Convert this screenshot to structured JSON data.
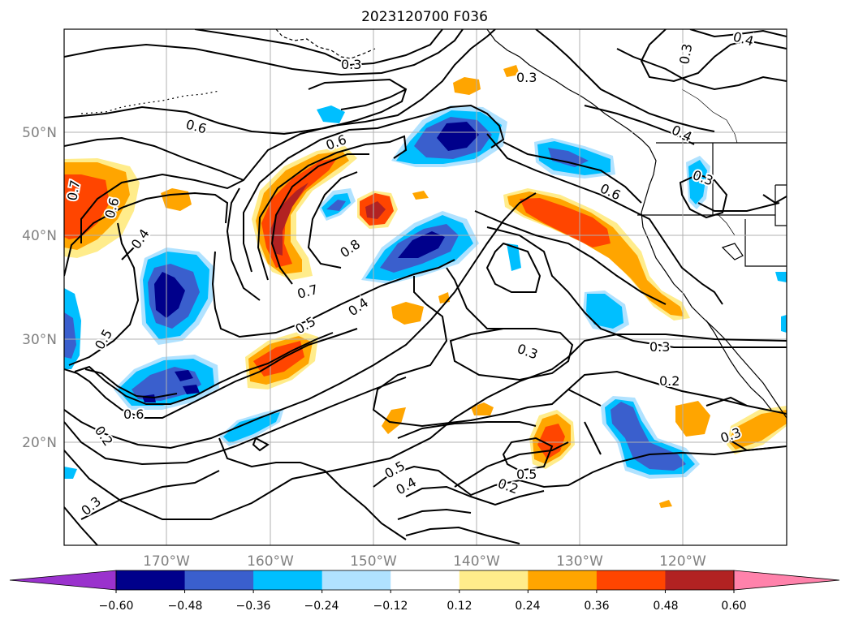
{
  "title": "2023120700 F036",
  "lat_labels": [
    "50°N",
    "40°N",
    "30°N",
    "20°N"
  ],
  "lon_labels": [
    "170°W",
    "160°W",
    "150°W",
    "140°W",
    "130°W",
    "120°W"
  ],
  "contour_labels": [
    "0.3",
    "0.3",
    "0.4",
    "0.3",
    "0.6",
    "0.6",
    "0.4",
    "0.3",
    "0.7",
    "0.6",
    "0.4",
    "0.6",
    "0.8",
    "0.7",
    "0.4",
    "0.5",
    "0.5",
    "0.3",
    "0.3",
    "0.2",
    "0.6",
    "0.2",
    "0.3",
    "0.5",
    "0.4",
    "0.5",
    "0.2",
    "0.3"
  ],
  "colorbar": {
    "ticks": [
      "−0.60",
      "−0.48",
      "−0.36",
      "−0.24",
      "−0.12",
      "0.12",
      "0.24",
      "0.36",
      "0.48",
      "0.60"
    ],
    "colors": {
      "under": "#9a32cd",
      "bins": [
        "#00008b",
        "#3a5fcd",
        "#00bfff",
        "#b0e2ff",
        "#ffffff",
        "#ffec8b",
        "#ffa500",
        "#ff4500",
        "#b22222"
      ],
      "over": "#ff82ab"
    }
  },
  "colors": {
    "grid": "#b0b0b0",
    "tick_label": "#808080",
    "contour": "#000000"
  }
}
